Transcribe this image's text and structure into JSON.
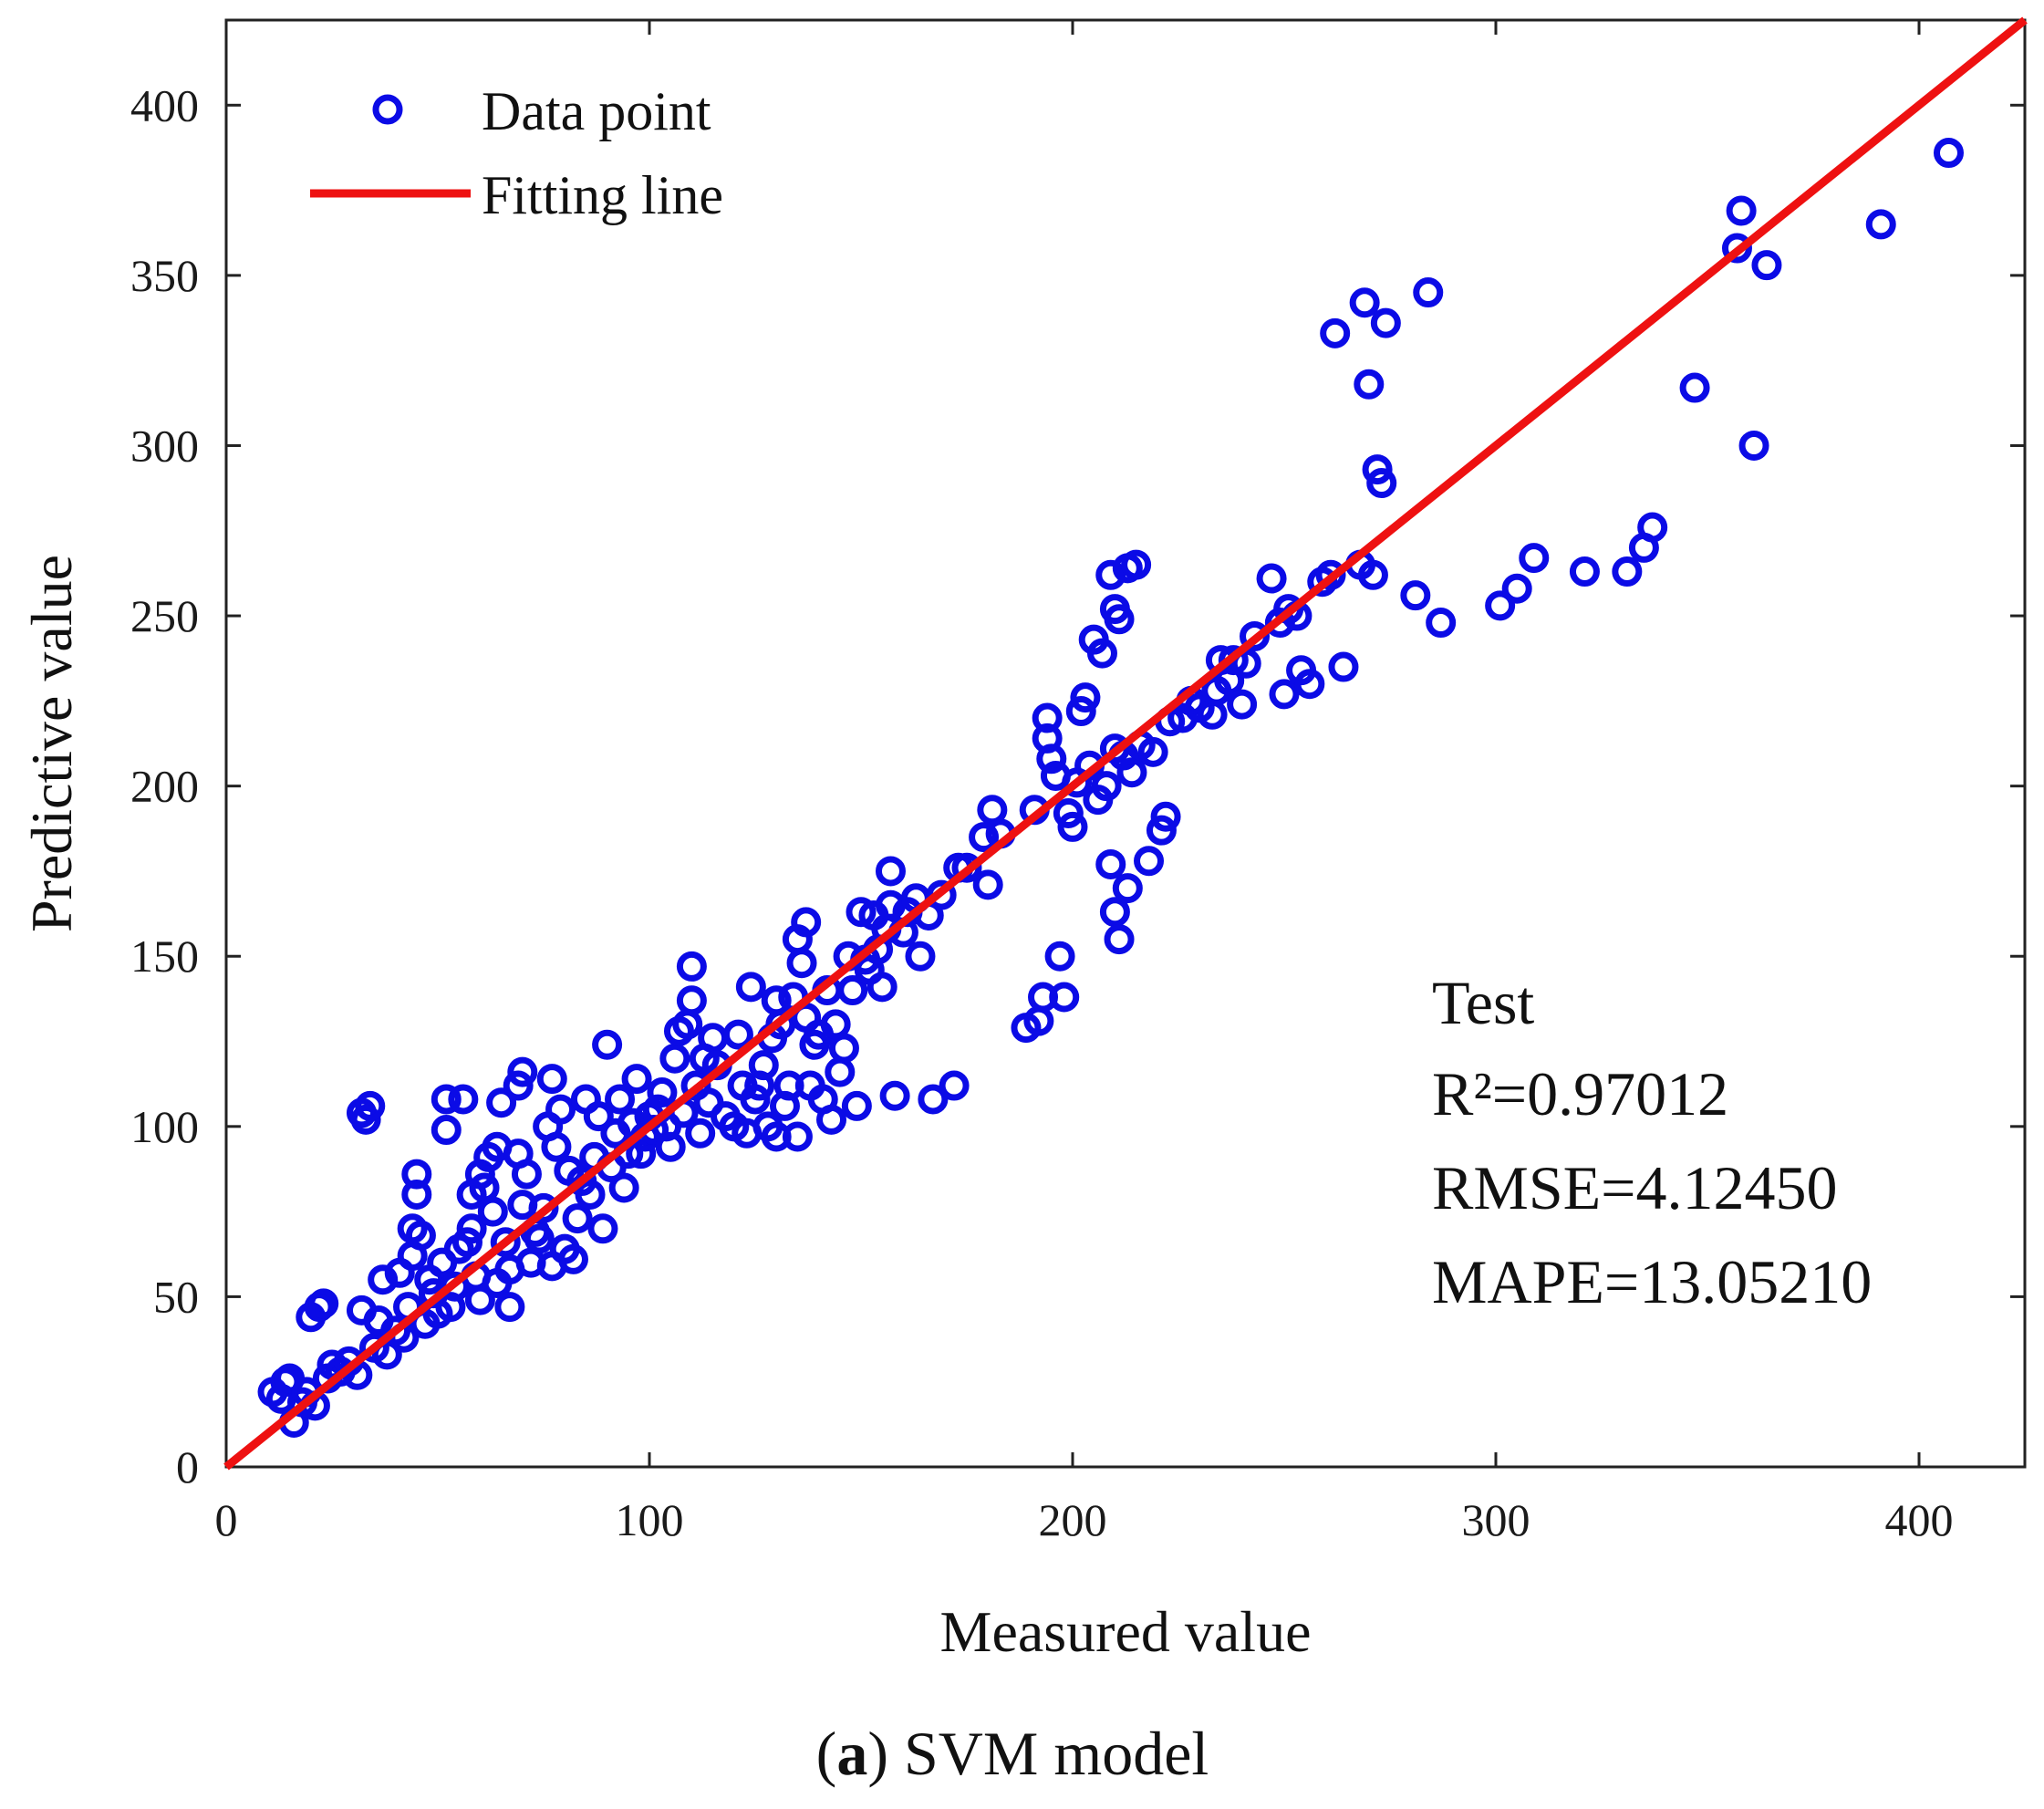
{
  "chart_data": {
    "type": "scatter",
    "xlabel": "Measured value",
    "ylabel": "Predictive value",
    "xlim": [
      0,
      425
    ],
    "ylim": [
      0,
      425
    ],
    "xticks": [
      0,
      100,
      200,
      300,
      400
    ],
    "yticks": [
      0,
      50,
      100,
      150,
      200,
      250,
      300,
      350,
      400
    ],
    "grid": false,
    "legend": {
      "position": "top-left",
      "entries": [
        {
          "label": "Data point",
          "marker": "circle-open"
        },
        {
          "label": "Fitting line",
          "marker": "line"
        }
      ]
    },
    "fit_line": {
      "slope": 1.0,
      "intercept": 0,
      "x_range": [
        0,
        425
      ]
    },
    "annotations": {
      "title": "Test",
      "r2": "R²=0.97012",
      "rmse": "RMSE=4.12450",
      "mape": "MAPE=13.05210"
    },
    "caption": {
      "label": "a",
      "open": "(",
      "close": ")",
      "text": " SVM model"
    },
    "series": [
      {
        "name": "Data point",
        "points": [
          [
            11,
            22
          ],
          [
            13,
            20
          ],
          [
            14,
            25
          ],
          [
            15,
            26
          ],
          [
            16,
            13
          ],
          [
            18,
            19
          ],
          [
            19,
            22
          ],
          [
            20,
            44
          ],
          [
            21,
            18
          ],
          [
            22,
            47
          ],
          [
            23,
            48
          ],
          [
            24,
            26
          ],
          [
            25,
            30
          ],
          [
            27,
            28
          ],
          [
            29,
            31
          ],
          [
            31,
            27
          ],
          [
            32,
            46
          ],
          [
            32,
            104
          ],
          [
            33,
            102
          ],
          [
            34,
            106
          ],
          [
            35,
            35
          ],
          [
            36,
            43
          ],
          [
            37,
            55
          ],
          [
            38,
            33
          ],
          [
            40,
            40
          ],
          [
            41,
            57
          ],
          [
            42,
            38
          ],
          [
            43,
            47
          ],
          [
            44,
            62
          ],
          [
            44,
            70
          ],
          [
            45,
            80
          ],
          [
            45,
            86
          ],
          [
            46,
            68
          ],
          [
            47,
            42
          ],
          [
            48,
            55
          ],
          [
            49,
            51
          ],
          [
            50,
            45
          ],
          [
            51,
            60
          ],
          [
            52,
            99
          ],
          [
            52,
            108
          ],
          [
            53,
            47
          ],
          [
            54,
            53
          ],
          [
            55,
            64
          ],
          [
            56,
            108
          ],
          [
            57,
            66
          ],
          [
            58,
            80
          ],
          [
            58,
            70
          ],
          [
            59,
            56
          ],
          [
            60,
            86
          ],
          [
            60,
            49
          ],
          [
            61,
            82
          ],
          [
            62,
            91
          ],
          [
            63,
            75
          ],
          [
            64,
            94
          ],
          [
            64,
            54
          ],
          [
            65,
            107
          ],
          [
            66,
            66
          ],
          [
            67,
            58
          ],
          [
            67,
            47
          ],
          [
            69,
            112
          ],
          [
            69,
            92
          ],
          [
            70,
            77
          ],
          [
            70,
            116
          ],
          [
            71,
            86
          ],
          [
            72,
            60
          ],
          [
            73,
            69
          ],
          [
            74,
            67
          ],
          [
            75,
            76
          ],
          [
            76,
            100
          ],
          [
            77,
            114
          ],
          [
            77,
            59
          ],
          [
            78,
            94
          ],
          [
            79,
            105
          ],
          [
            80,
            64
          ],
          [
            81,
            87
          ],
          [
            82,
            61
          ],
          [
            83,
            73
          ],
          [
            84,
            84
          ],
          [
            85,
            108
          ],
          [
            86,
            80
          ],
          [
            87,
            91
          ],
          [
            88,
            103
          ],
          [
            89,
            70
          ],
          [
            90,
            124
          ],
          [
            91,
            88
          ],
          [
            92,
            98
          ],
          [
            93,
            108
          ],
          [
            94,
            82
          ],
          [
            95,
            92
          ],
          [
            96,
            101
          ],
          [
            97,
            114
          ],
          [
            98,
            92
          ],
          [
            99,
            97
          ],
          [
            100,
            103
          ],
          [
            101,
            99
          ],
          [
            102,
            105
          ],
          [
            103,
            110
          ],
          [
            104,
            100
          ],
          [
            105,
            94
          ],
          [
            106,
            120
          ],
          [
            107,
            128
          ],
          [
            108,
            104
          ],
          [
            109,
            130
          ],
          [
            110,
            147
          ],
          [
            110,
            137
          ],
          [
            111,
            112
          ],
          [
            112,
            98
          ],
          [
            113,
            120
          ],
          [
            114,
            107
          ],
          [
            115,
            126
          ],
          [
            116,
            118
          ],
          [
            118,
            103
          ],
          [
            120,
            100
          ],
          [
            121,
            127
          ],
          [
            122,
            112
          ],
          [
            123,
            98
          ],
          [
            124,
            141
          ],
          [
            125,
            108
          ],
          [
            126,
            112
          ],
          [
            127,
            118
          ],
          [
            128,
            100
          ],
          [
            129,
            126
          ],
          [
            130,
            97
          ],
          [
            130,
            137
          ],
          [
            131,
            130
          ],
          [
            132,
            106
          ],
          [
            133,
            112
          ],
          [
            134,
            138
          ],
          [
            135,
            97
          ],
          [
            135,
            155
          ],
          [
            136,
            148
          ],
          [
            137,
            132
          ],
          [
            137,
            160
          ],
          [
            138,
            112
          ],
          [
            139,
            124
          ],
          [
            140,
            127
          ],
          [
            141,
            108
          ],
          [
            142,
            140
          ],
          [
            143,
            102
          ],
          [
            144,
            130
          ],
          [
            145,
            116
          ],
          [
            146,
            123
          ],
          [
            147,
            150
          ],
          [
            148,
            140
          ],
          [
            149,
            106
          ],
          [
            150,
            163
          ],
          [
            151,
            149
          ],
          [
            152,
            146
          ],
          [
            153,
            162
          ],
          [
            154,
            152
          ],
          [
            155,
            141
          ],
          [
            156,
            158
          ],
          [
            157,
            175
          ],
          [
            157,
            165
          ],
          [
            158,
            109
          ],
          [
            160,
            157
          ],
          [
            161,
            163
          ],
          [
            163,
            167
          ],
          [
            164,
            150
          ],
          [
            166,
            162
          ],
          [
            167,
            108
          ],
          [
            169,
            168
          ],
          [
            172,
            112
          ],
          [
            173,
            176
          ],
          [
            175,
            176
          ],
          [
            179,
            185
          ],
          [
            180,
            171
          ],
          [
            181,
            193
          ],
          [
            183,
            186
          ],
          [
            189,
            129
          ],
          [
            191,
            193
          ],
          [
            192,
            131
          ],
          [
            193,
            138
          ],
          [
            194,
            214
          ],
          [
            194,
            220
          ],
          [
            195,
            208
          ],
          [
            196,
            203
          ],
          [
            197,
            150
          ],
          [
            198,
            138
          ],
          [
            199,
            192
          ],
          [
            200,
            188
          ],
          [
            201,
            201
          ],
          [
            202,
            222
          ],
          [
            203,
            226
          ],
          [
            204,
            206
          ],
          [
            205,
            243
          ],
          [
            206,
            196
          ],
          [
            207,
            239
          ],
          [
            208,
            200
          ],
          [
            209,
            262
          ],
          [
            209,
            177
          ],
          [
            210,
            211
          ],
          [
            210,
            163
          ],
          [
            210,
            252
          ],
          [
            211,
            155
          ],
          [
            211,
            249
          ],
          [
            212,
            209
          ],
          [
            213,
            170
          ],
          [
            213,
            264
          ],
          [
            214,
            204
          ],
          [
            215,
            265
          ],
          [
            216,
            212
          ],
          [
            218,
            178
          ],
          [
            219,
            210
          ],
          [
            221,
            187
          ],
          [
            222,
            191
          ],
          [
            223,
            219
          ],
          [
            226,
            220
          ],
          [
            228,
            225
          ],
          [
            230,
            223
          ],
          [
            233,
            221
          ],
          [
            234,
            228
          ],
          [
            235,
            237
          ],
          [
            237,
            231
          ],
          [
            238,
            237
          ],
          [
            240,
            224
          ],
          [
            241,
            236
          ],
          [
            243,
            244
          ],
          [
            247,
            261
          ],
          [
            249,
            248
          ],
          [
            250,
            227
          ],
          [
            251,
            252
          ],
          [
            253,
            250
          ],
          [
            254,
            234
          ],
          [
            256,
            230
          ],
          [
            259,
            260
          ],
          [
            261,
            262
          ],
          [
            262,
            333
          ],
          [
            264,
            235
          ],
          [
            268,
            265
          ],
          [
            269,
            342
          ],
          [
            270,
            318
          ],
          [
            271,
            262
          ],
          [
            272,
            293
          ],
          [
            273,
            289
          ],
          [
            274,
            336
          ],
          [
            281,
            256
          ],
          [
            284,
            345
          ],
          [
            287,
            248
          ],
          [
            301,
            253
          ],
          [
            305,
            258
          ],
          [
            309,
            267
          ],
          [
            321,
            263
          ],
          [
            331,
            263
          ],
          [
            335,
            270
          ],
          [
            337,
            276
          ],
          [
            347,
            317
          ],
          [
            357,
            358
          ],
          [
            358,
            369
          ],
          [
            361,
            300
          ],
          [
            364,
            353
          ],
          [
            391,
            365
          ],
          [
            407,
            386
          ]
        ]
      }
    ]
  }
}
